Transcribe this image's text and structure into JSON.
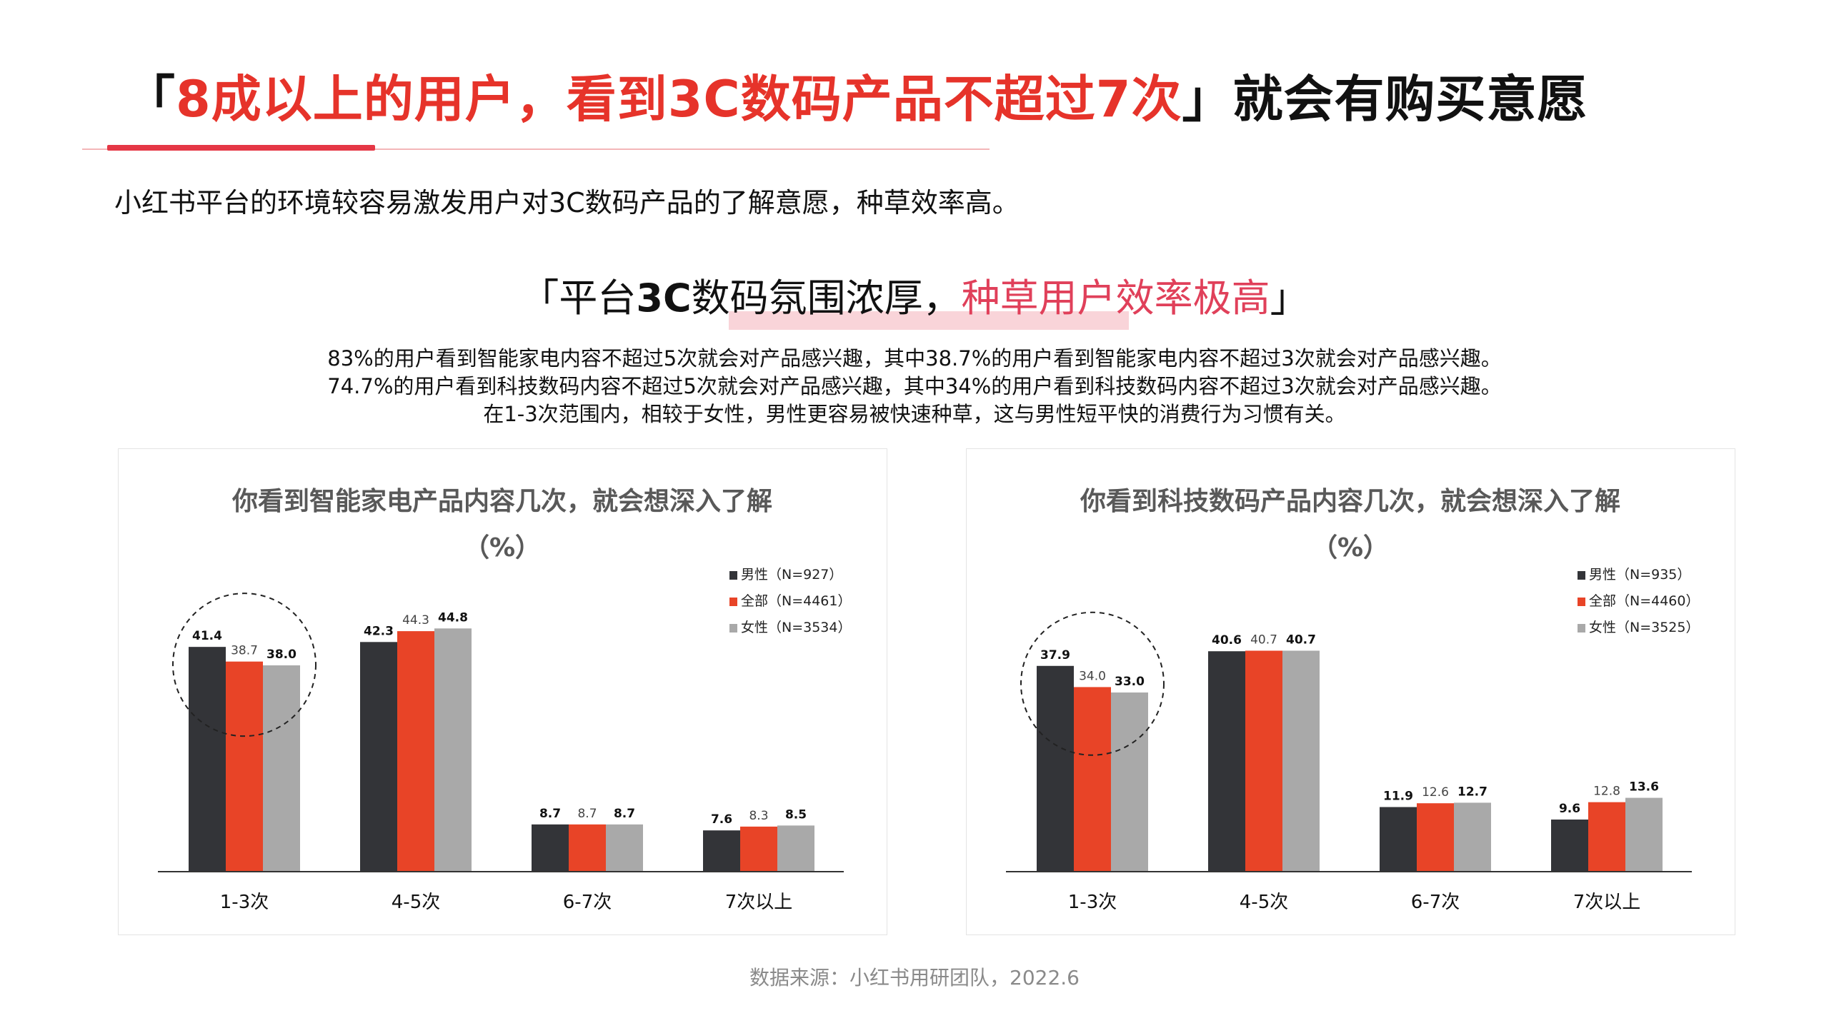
{
  "header": {
    "title_open": "「",
    "title_highlight": "8成以上的用户，看到3C数码产品不超过7次",
    "title_close": "」就会有购买意愿",
    "subtitle": "小红书平台的环境较容易激发用户对3C数码产品的了解意愿，种草效率高。"
  },
  "slogan": {
    "open": "「平台",
    "strong": "3C",
    "middle": "数码氛围浓厚，",
    "pink": "种草用户效率极高",
    "close": "」"
  },
  "description": [
    "83%的用户看到智能家电内容不超过5次就会对产品感兴趣，其中38.7%的用户看到智能家电内容不超过3次就会对产品感兴趣。",
    "74.7%的用户看到科技数码内容不超过5次就会对产品感兴趣，其中34%的用户看到科技数码内容不超过3次就会对产品感兴趣。",
    "在1-3次范围内，相较于女性，男性更容易被快速种草，这与男性短平快的消费行为习惯有关。"
  ],
  "colors": {
    "male": "#333438",
    "all": "#e84427",
    "female": "#a9a9a9",
    "accent": "#e6332a",
    "pink": "#e0405a"
  },
  "chart_data": [
    {
      "type": "bar",
      "title": "你看到智能家电产品内容几次，就会想深入了解",
      "unit": "（%）",
      "categories": [
        "1-3次",
        "4-5次",
        "6-7次",
        "7次以上"
      ],
      "series": [
        {
          "name": "男性（N=927）",
          "values": [
            41.4,
            42.3,
            8.7,
            7.6
          ]
        },
        {
          "name": "全部（N=4461）",
          "values": [
            38.7,
            44.3,
            8.7,
            8.3
          ]
        },
        {
          "name": "女性（N=3534）",
          "values": [
            38.0,
            44.8,
            8.7,
            8.5
          ]
        }
      ],
      "ylim": [
        0,
        50
      ],
      "grid": false,
      "legend_position": "top-right",
      "highlight_category": "1-3次"
    },
    {
      "type": "bar",
      "title": "你看到科技数码产品内容几次，就会想深入了解",
      "unit": "（%）",
      "categories": [
        "1-3次",
        "4-5次",
        "6-7次",
        "7次以上"
      ],
      "series": [
        {
          "name": "男性（N=935）",
          "values": [
            37.9,
            40.6,
            11.9,
            9.6
          ]
        },
        {
          "name": "全部（N=4460）",
          "values": [
            34.0,
            40.7,
            12.6,
            12.8
          ]
        },
        {
          "name": "女性（N=3525）",
          "values": [
            33.0,
            40.7,
            12.7,
            13.6
          ]
        }
      ],
      "ylim": [
        0,
        50
      ],
      "grid": false,
      "legend_position": "top-right",
      "highlight_category": "1-3次"
    }
  ],
  "footer": {
    "source": "数据来源：小红书用研团队，2022.6"
  }
}
